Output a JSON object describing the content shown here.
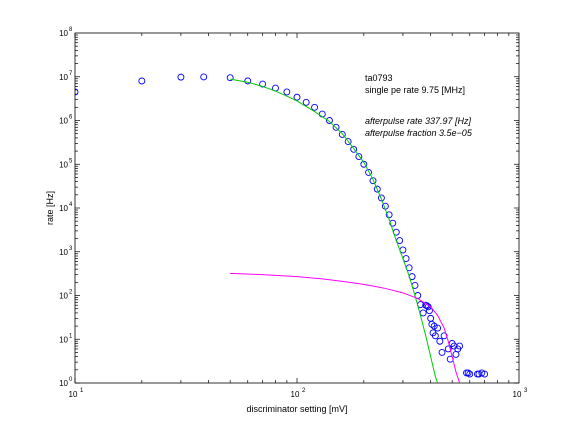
{
  "chart_data": {
    "type": "scatter",
    "title": "",
    "xlabel": "discriminator setting [mV]",
    "ylabel": "rate [Hz]",
    "xscale": "log",
    "yscale": "log",
    "xlim": [
      10,
      1000
    ],
    "ylim": [
      1,
      100000000
    ],
    "grid": false,
    "x_ticks": [
      {
        "base": "10",
        "exp": "1",
        "value": 10
      },
      {
        "base": "10",
        "exp": "2",
        "value": 100
      },
      {
        "base": "10",
        "exp": "3",
        "value": 1000
      }
    ],
    "y_ticks": [
      {
        "base": "10",
        "exp": "0",
        "value": 1
      },
      {
        "base": "10",
        "exp": "1",
        "value": 10
      },
      {
        "base": "10",
        "exp": "2",
        "value": 100
      },
      {
        "base": "10",
        "exp": "3",
        "value": 1000
      },
      {
        "base": "10",
        "exp": "4",
        "value": 10000
      },
      {
        "base": "10",
        "exp": "5",
        "value": 100000
      },
      {
        "base": "10",
        "exp": "6",
        "value": 1000000
      },
      {
        "base": "10",
        "exp": "7",
        "value": 10000000
      },
      {
        "base": "10",
        "exp": "8",
        "value": 100000000
      }
    ],
    "annotations": [
      {
        "text": "ta0793",
        "style": "normal"
      },
      {
        "text": "single pe rate 9.75 [MHz]",
        "style": "normal"
      },
      {
        "text": "afterpulse rate 337.97 [Hz]",
        "style": "italic"
      },
      {
        "text": "afterpulse fraction 3.5e−05",
        "style": "italic"
      }
    ],
    "series": [
      {
        "kind": "markers",
        "color": "#0000ff",
        "points": [
          [
            10,
            4500000
          ],
          [
            20,
            8000000
          ],
          [
            30,
            9800000
          ],
          [
            38,
            9900000
          ],
          [
            50,
            9500000
          ],
          [
            60,
            8000000
          ],
          [
            70,
            6800000
          ],
          [
            80,
            5500000
          ],
          [
            90,
            4500000
          ],
          [
            100,
            3400000
          ],
          [
            110,
            2600000
          ],
          [
            120,
            2000000
          ],
          [
            130,
            1400000
          ],
          [
            140,
            1000000
          ],
          [
            150,
            700000
          ],
          [
            160,
            480000
          ],
          [
            170,
            330000
          ],
          [
            180,
            220000
          ],
          [
            190,
            150000
          ],
          [
            200,
            100000
          ],
          [
            210,
            65000
          ],
          [
            220,
            42000
          ],
          [
            230,
            27000
          ],
          [
            240,
            17000
          ],
          [
            250,
            11000
          ],
          [
            260,
            7000
          ],
          [
            270,
            4500
          ],
          [
            280,
            2800
          ],
          [
            290,
            1800
          ],
          [
            300,
            1100
          ],
          [
            310,
            700
          ],
          [
            320,
            430
          ],
          [
            330,
            270
          ],
          [
            340,
            170
          ],
          [
            350,
            100
          ],
          [
            360,
            62
          ],
          [
            370,
            40
          ],
          [
            380,
            60
          ],
          [
            385,
            58
          ],
          [
            390,
            55
          ],
          [
            395,
            45
          ],
          [
            400,
            30
          ],
          [
            405,
            22
          ],
          [
            410,
            14
          ],
          [
            415,
            20
          ],
          [
            420,
            12
          ],
          [
            430,
            18
          ],
          [
            440,
            9
          ],
          [
            450,
            5
          ],
          [
            460,
            12
          ],
          [
            480,
            6
          ],
          [
            490,
            3.5
          ],
          [
            500,
            8
          ],
          [
            510,
            7
          ],
          [
            520,
            4.5
          ],
          [
            530,
            6
          ],
          [
            540,
            7
          ],
          [
            580,
            1.7
          ],
          [
            590,
            1.7
          ],
          [
            600,
            1.6
          ],
          [
            650,
            1.6
          ],
          [
            660,
            1.6
          ],
          [
            680,
            1.7
          ],
          [
            700,
            1.6
          ]
        ]
      },
      {
        "kind": "line",
        "color": "#00cc00",
        "points": [
          [
            50,
            8800000
          ],
          [
            60,
            7500000
          ],
          [
            70,
            6000000
          ],
          [
            80,
            4700000
          ],
          [
            90,
            3600000
          ],
          [
            100,
            2800000
          ],
          [
            120,
            1600000
          ],
          [
            140,
            950000
          ],
          [
            160,
            500000
          ],
          [
            180,
            230000
          ],
          [
            200,
            110000
          ],
          [
            220,
            45000
          ],
          [
            240,
            16000
          ],
          [
            260,
            5500
          ],
          [
            280,
            1800
          ],
          [
            300,
            700
          ],
          [
            320,
            280
          ],
          [
            340,
            100
          ],
          [
            360,
            35
          ],
          [
            380,
            12
          ],
          [
            400,
            4
          ],
          [
            420,
            1.4
          ],
          [
            430,
            1
          ]
        ]
      },
      {
        "kind": "line",
        "color": "#ff00ff",
        "points": [
          [
            50,
            320
          ],
          [
            70,
            300
          ],
          [
            100,
            270
          ],
          [
            130,
            240
          ],
          [
            160,
            210
          ],
          [
            200,
            180
          ],
          [
            250,
            145
          ],
          [
            300,
            115
          ],
          [
            350,
            85
          ],
          [
            400,
            55
          ],
          [
            430,
            35
          ],
          [
            460,
            18
          ],
          [
            480,
            9
          ],
          [
            500,
            4
          ],
          [
            520,
            1.8
          ],
          [
            540,
            1
          ]
        ]
      }
    ]
  }
}
